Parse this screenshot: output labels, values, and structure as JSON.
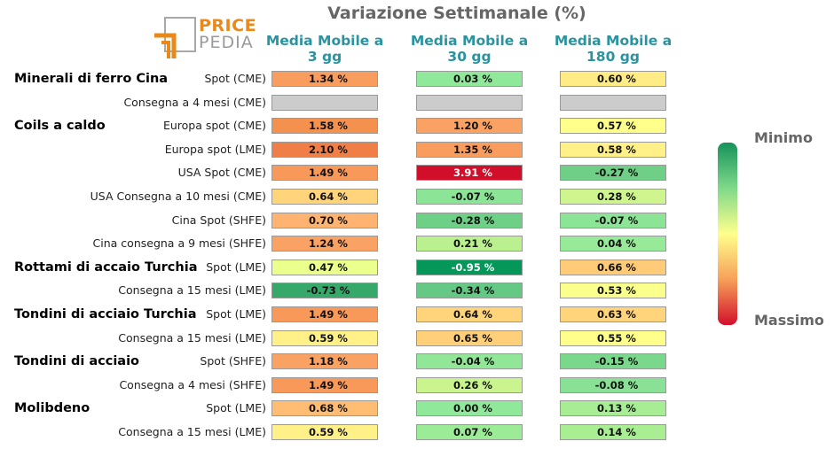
{
  "header": {
    "title": "Variazione Settimanale (%)"
  },
  "logo": {
    "word1": "PRICE",
    "word2": "PEDIA"
  },
  "chart_data": {
    "type": "table",
    "title": "Variazione Settimanale (%)",
    "columns": [
      {
        "line1": "Media Mobile a",
        "line2": "3 gg"
      },
      {
        "line1": "Media Mobile a",
        "line2": "30 gg"
      },
      {
        "line1": "Media Mobile a",
        "line2": "180 gg"
      }
    ],
    "legend": {
      "top_label": "Minimo",
      "bottom_label": "Massimo"
    },
    "rows": [
      {
        "group": "Minerali di ferro Cina",
        "label": "Spot (CME)",
        "values": [
          "1.34 %",
          "0.03 %",
          "0.60 %"
        ],
        "colors": [
          "#f89d5e",
          "#90e89a",
          "#ffec85"
        ]
      },
      {
        "group": "",
        "label": "Consegna a 4 mesi (CME)",
        "values": [
          "",
          "",
          ""
        ],
        "colors": [
          "#cccccc",
          "#cccccc",
          "#cccccc"
        ]
      },
      {
        "group": "Coils a caldo",
        "label": "Europa spot (CME)",
        "values": [
          "1.58 %",
          "1.20 %",
          "0.57 %"
        ],
        "colors": [
          "#f4914e",
          "#f9a263",
          "#ffff8c"
        ]
      },
      {
        "group": "",
        "label": "Europa spot (LME)",
        "values": [
          "2.10 %",
          "1.35 %",
          "0.58 %"
        ],
        "colors": [
          "#ef7f47",
          "#f89d5e",
          "#fff088"
        ]
      },
      {
        "group": "",
        "label": "USA Spot (CME)",
        "values": [
          "1.49 %",
          "3.91 %",
          "-0.27 %"
        ],
        "colors": [
          "#f89959",
          "#d20f2a",
          "#6fcf86"
        ]
      },
      {
        "group": "",
        "label": "USA Consegna a 10 mesi (CME)",
        "values": [
          "0.64 %",
          "-0.07 %",
          "0.28 %"
        ],
        "colors": [
          "#ffd47b",
          "#8ce497",
          "#cff68e"
        ]
      },
      {
        "group": "",
        "label": "Cina Spot (SHFE)",
        "values": [
          "0.70 %",
          "-0.28 %",
          "-0.07 %"
        ],
        "colors": [
          "#ffb370",
          "#6ecf87",
          "#8ce497"
        ]
      },
      {
        "group": "",
        "label": "Cina consegna a 9 mesi (SHFE)",
        "values": [
          "1.24 %",
          "0.21 %",
          "0.04 %"
        ],
        "colors": [
          "#f9a263",
          "#baf08e",
          "#97ea98"
        ]
      },
      {
        "group": "Rottami di accaio Turchia",
        "label": "Spot (LME)",
        "values": [
          "0.47 %",
          "-0.95 %",
          "0.66 %"
        ],
        "colors": [
          "#eaff8c",
          "#05975a",
          "#ffcb78"
        ]
      },
      {
        "group": "",
        "label": "Consegna a 15 mesi (LME)",
        "values": [
          "-0.73 %",
          "-0.34 %",
          "0.53 %"
        ],
        "colors": [
          "#36a96a",
          "#65c985",
          "#fbff8c"
        ]
      },
      {
        "group": "Tondini di acciaio Turchia",
        "label": "Spot (LME)",
        "values": [
          "1.49 %",
          "0.64 %",
          "0.63 %"
        ],
        "colors": [
          "#f89959",
          "#ffd47b",
          "#ffd47b"
        ]
      },
      {
        "group": "",
        "label": "Consegna a 15 mesi (LME)",
        "values": [
          "0.59 %",
          "0.65 %",
          "0.55 %"
        ],
        "colors": [
          "#fff188",
          "#ffcf79",
          "#ffff8c"
        ]
      },
      {
        "group": "Tondini di acciaio",
        "label": "Spot (SHFE)",
        "values": [
          "1.18 %",
          "-0.04 %",
          "-0.15 %"
        ],
        "colors": [
          "#f9a263",
          "#92e697",
          "#7ad88c"
        ]
      },
      {
        "group": "",
        "label": "Consegna a 4 mesi (SHFE)",
        "values": [
          "1.49 %",
          "0.26 %",
          "-0.08 %"
        ],
        "colors": [
          "#f89959",
          "#c9f48e",
          "#88e195"
        ]
      },
      {
        "group": "Molibdeno",
        "label": "Spot (LME)",
        "values": [
          "0.68 %",
          "0.00 %",
          "0.13 %"
        ],
        "colors": [
          "#ffbd74",
          "#90e89a",
          "#a7ed93"
        ]
      },
      {
        "group": "",
        "label": "Consegna a 15 mesi (LME)",
        "values": [
          "0.59 %",
          "0.07 %",
          "0.14 %"
        ],
        "colors": [
          "#fff188",
          "#9ceb96",
          "#a9ee93"
        ]
      }
    ]
  }
}
